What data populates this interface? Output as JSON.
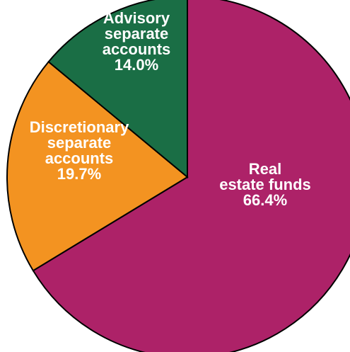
{
  "chart_data": {
    "type": "pie",
    "start_angle_deg": 0,
    "direction": "clockwise",
    "slices": [
      {
        "name": "Real estate funds",
        "value": 66.4,
        "label_lines": [
          "Real",
          "estate funds",
          "66.4%"
        ],
        "color": "#AD2268"
      },
      {
        "name": "Discretionary separate accounts",
        "value": 19.7,
        "label_lines": [
          "Discretionary",
          "separate",
          "accounts",
          "19.7%"
        ],
        "color": "#F39321"
      },
      {
        "name": "Advisory separate accounts",
        "value": 14.0,
        "label_lines": [
          "Advisory",
          "separate",
          "accounts",
          "14.0%"
        ],
        "color": "#1A6E45"
      }
    ]
  }
}
